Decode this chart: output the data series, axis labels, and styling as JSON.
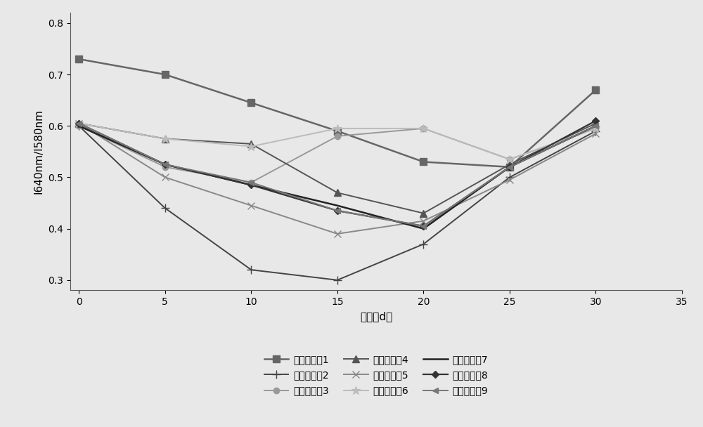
{
  "x": [
    0,
    5,
    10,
    15,
    20,
    25,
    30
  ],
  "series": [
    {
      "label": "对比实施例1",
      "values": [
        0.73,
        0.7,
        0.645,
        0.59,
        0.53,
        0.52,
        0.67
      ],
      "color": "#666666",
      "marker": "s",
      "linewidth": 1.8,
      "markersize": 7
    },
    {
      "label": "对比实施例2",
      "values": [
        0.6,
        0.44,
        0.32,
        0.3,
        0.37,
        0.5,
        0.59
      ],
      "color": "#444444",
      "marker": "+",
      "linewidth": 1.4,
      "markersize": 9
    },
    {
      "label": "对比实施例3",
      "values": [
        0.6,
        0.52,
        0.49,
        0.58,
        0.595,
        0.535,
        0.595
      ],
      "color": "#999999",
      "marker": "o",
      "linewidth": 1.4,
      "markersize": 6
    },
    {
      "label": "对比实施例4",
      "values": [
        0.605,
        0.575,
        0.565,
        0.47,
        0.43,
        0.525,
        0.605
      ],
      "color": "#555555",
      "marker": "^",
      "linewidth": 1.4,
      "markersize": 7
    },
    {
      "label": "对比实施例5",
      "values": [
        0.605,
        0.5,
        0.445,
        0.39,
        0.415,
        0.495,
        0.585
      ],
      "color": "#888888",
      "marker": "x",
      "linewidth": 1.4,
      "markersize": 7
    },
    {
      "label": "对比实施例6",
      "values": [
        0.605,
        0.575,
        0.56,
        0.595,
        0.595,
        0.535,
        0.595
      ],
      "color": "#bbbbbb",
      "marker": "*",
      "linewidth": 1.4,
      "markersize": 9
    },
    {
      "label": "对比实施例7",
      "values": [
        0.6,
        0.525,
        0.485,
        0.445,
        0.4,
        0.52,
        0.6
      ],
      "color": "#222222",
      "marker": "None",
      "linewidth": 1.8,
      "markersize": 0
    },
    {
      "label": "对比实施例8",
      "values": [
        0.605,
        0.525,
        0.485,
        0.435,
        0.405,
        0.52,
        0.61
      ],
      "color": "#333333",
      "marker": "D",
      "linewidth": 1.6,
      "markersize": 5
    },
    {
      "label": "对比实施例9",
      "values": [
        0.605,
        0.525,
        0.49,
        0.435,
        0.405,
        0.52,
        0.6
      ],
      "color": "#777777",
      "marker": "<",
      "linewidth": 1.4,
      "markersize": 6
    }
  ],
  "xlabel": "时间（d）",
  "ylabel": "I640nm/I580nm",
  "xlim": [
    -0.5,
    35
  ],
  "ylim": [
    0.28,
    0.82
  ],
  "xticks": [
    0,
    5,
    10,
    15,
    20,
    25,
    30,
    35
  ],
  "yticks": [
    0.3,
    0.4,
    0.5,
    0.6,
    0.7,
    0.8
  ],
  "legend_ncol": 3,
  "legend_fontsize": 10,
  "axis_fontsize": 11,
  "tick_fontsize": 10,
  "fig_facecolor": "#e8e8e8",
  "ax_facecolor": "#e8e8e8"
}
